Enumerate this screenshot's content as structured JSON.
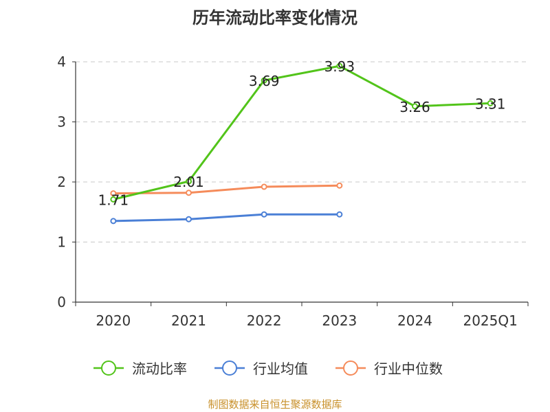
{
  "chart_data": {
    "type": "line",
    "title": "历年流动比率变化情况",
    "categories": [
      "2020",
      "2021",
      "2022",
      "2023",
      "2024",
      "2025Q1"
    ],
    "ylim": [
      0,
      4
    ],
    "yticks": [
      0,
      1,
      2,
      3,
      4
    ],
    "grid": true,
    "legend_position": "bottom",
    "series": [
      {
        "name": "流动比率",
        "color": "#52c41a",
        "values": [
          1.71,
          2.01,
          3.69,
          3.93,
          3.26,
          3.31
        ],
        "show_labels": true
      },
      {
        "name": "行业均值",
        "color": "#4a7fd6",
        "values": [
          1.35,
          1.38,
          1.46,
          1.46,
          null,
          null
        ],
        "show_labels": false
      },
      {
        "name": "行业中位数",
        "color": "#f58b5a",
        "values": [
          1.81,
          1.82,
          1.92,
          1.94,
          null,
          null
        ],
        "show_labels": false
      }
    ]
  },
  "source_text": "制图数据来自恒生聚源数据库",
  "source_color": "#c8902a"
}
